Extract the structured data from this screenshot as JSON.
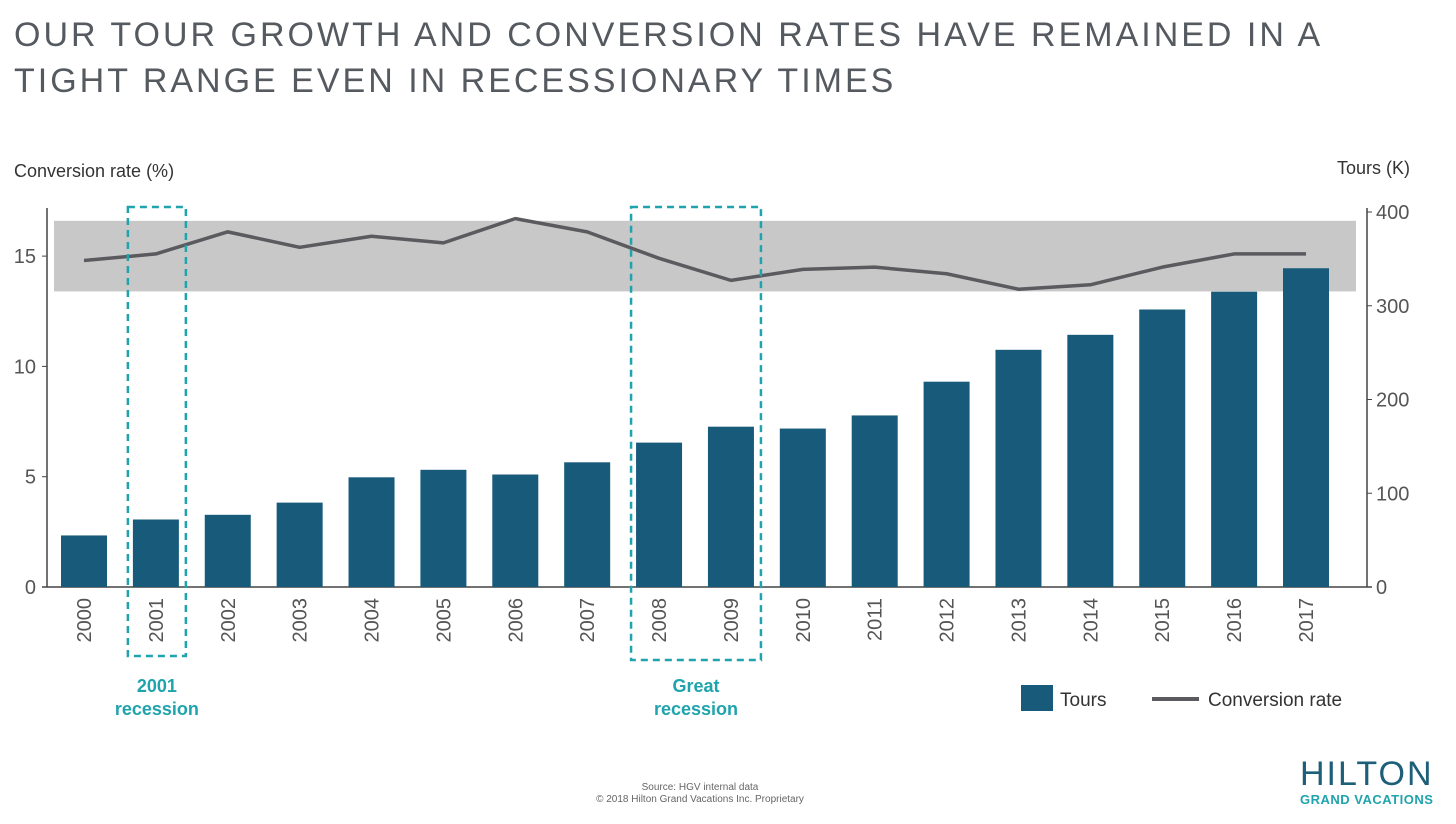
{
  "title": {
    "line1": "OUR TOUR GROWTH AND CONVERSION RATES HAVE REMAINED IN A",
    "line2": "TIGHT RANGE EVEN IN RECESSIONARY TIMES"
  },
  "chart_data": {
    "type": "bar",
    "categories": [
      "2000",
      "2001",
      "2002",
      "2003",
      "2004",
      "2005",
      "2006",
      "2007",
      "2008",
      "2009",
      "2010",
      "2011",
      "2012",
      "2013",
      "2014",
      "2015",
      "2016",
      "2017"
    ],
    "series": [
      {
        "name": "Tours",
        "type": "bar",
        "axis": "right",
        "color": "#175a7a",
        "values": [
          55,
          72,
          77,
          90,
          117,
          125,
          120,
          133,
          154,
          171,
          169,
          183,
          219,
          253,
          269,
          296,
          315,
          340
        ]
      },
      {
        "name": "Conversion rate",
        "type": "line",
        "axis": "left",
        "color": "#5a5a5f",
        "values": [
          14.8,
          15.1,
          16.1,
          15.4,
          15.9,
          15.6,
          16.7,
          16.1,
          14.9,
          13.9,
          14.4,
          14.5,
          14.2,
          13.5,
          13.7,
          14.5,
          15.1,
          15.1
        ]
      }
    ],
    "y_left": {
      "label": "Conversion rate (%)",
      "ticks": [
        0,
        5,
        10,
        15
      ],
      "range": [
        0,
        17
      ]
    },
    "y_right": {
      "label": "Tours (K)",
      "ticks": [
        0,
        100,
        200,
        300,
        400
      ],
      "range": [
        0,
        400
      ]
    },
    "range_band": {
      "from": 13.4,
      "to": 16.6,
      "color": "#c8c8c8"
    },
    "highlights": [
      {
        "label_line1": "2001",
        "label_line2": "recession",
        "categories": [
          "2001"
        ],
        "color": "#1fa3ad"
      },
      {
        "label_line1": "Great",
        "label_line2": "recession",
        "categories": [
          "2008",
          "2009"
        ],
        "color": "#1fa3ad"
      }
    ],
    "legend": {
      "position": "bottom-right",
      "items": [
        "Tours",
        "Conversion rate"
      ]
    },
    "grid": false
  },
  "footer": {
    "source": "Source: HGV internal data",
    "copyright": "© 2018 Hilton Grand Vacations Inc. Proprietary"
  },
  "logo": {
    "name": "HILTON",
    "tagline": "GRAND VACATIONS"
  }
}
